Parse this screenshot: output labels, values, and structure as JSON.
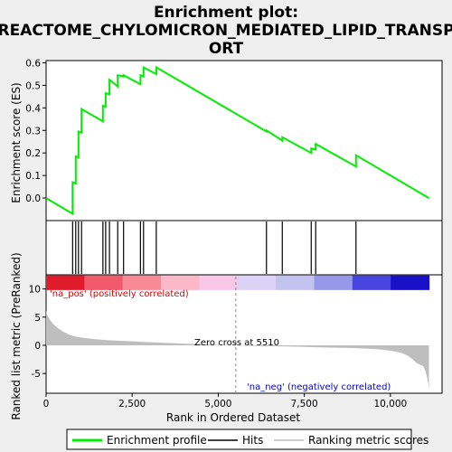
{
  "title_lines": [
    "Enrichment plot:",
    "REACTOME_CHYLOMICRON_MEDIATED_LIPID_TRANSP",
    "ORT"
  ],
  "colors": {
    "background": "#efefef",
    "profile": "#00ee00",
    "hits": "#000000",
    "metric_fill": "#bebebe",
    "pos_label": "#dd0000",
    "neg_label": "#0000cc"
  },
  "chart_data": [
    {
      "type": "line",
      "name": "enrichment-profile",
      "ylabel": "Enrichment score (ES)",
      "xlim": [
        0,
        11500
      ],
      "ylim": [
        -0.1,
        0.61
      ],
      "yticks": [
        0.0,
        0.1,
        0.2,
        0.3,
        0.4,
        0.5,
        0.6
      ],
      "ytick_labels": [
        "0.0",
        "0.1",
        "0.2",
        "0.3",
        "0.4",
        "0.5",
        "0.6"
      ],
      "grid": false,
      "x": [
        0,
        770,
        770,
        860,
        860,
        940,
        940,
        1030,
        1030,
        1650,
        1650,
        1730,
        1730,
        1840,
        1840,
        2080,
        2080,
        2250,
        2250,
        2740,
        2740,
        2830,
        2830,
        3200,
        3200,
        6400,
        6400,
        6860,
        6860,
        7700,
        7700,
        7830,
        7830,
        9000,
        9000,
        11120
      ],
      "y": [
        0.0,
        -0.07,
        0.07,
        0.065,
        0.185,
        0.18,
        0.295,
        0.29,
        0.395,
        0.34,
        0.41,
        0.405,
        0.465,
        0.46,
        0.525,
        0.495,
        0.545,
        0.54,
        0.545,
        0.505,
        0.545,
        0.54,
        0.58,
        0.55,
        0.58,
        0.295,
        0.3,
        0.255,
        0.27,
        0.2,
        0.22,
        0.215,
        0.24,
        0.14,
        0.19,
        0.0
      ]
    },
    {
      "type": "line",
      "name": "hits",
      "hit_positions": [
        770,
        860,
        940,
        1030,
        1650,
        1730,
        1840,
        2080,
        2250,
        2740,
        2830,
        3200,
        6400,
        6860,
        7700,
        7830,
        9000
      ]
    },
    {
      "type": "area",
      "name": "ranking-metric",
      "xlabel": "Rank in Ordered Dataset",
      "ylabel": "Ranked list metric (PreRanked)",
      "xlim": [
        0,
        11500
      ],
      "ylim": [
        -8.5,
        12.5
      ],
      "xticks": [
        0,
        2500,
        5000,
        7500,
        10000
      ],
      "xtick_labels": [
        "0",
        "2,500",
        "5,000",
        "7,500",
        "10,000"
      ],
      "yticks": [
        -5,
        0,
        5,
        10
      ],
      "ytick_labels": [
        "-5",
        "0",
        "5",
        "10"
      ],
      "x": [
        0,
        30,
        100,
        200,
        350,
        500,
        700,
        900,
        1100,
        1400,
        1800,
        2300,
        3000,
        4000,
        5000,
        5510,
        6000,
        7000,
        8000,
        9000,
        9600,
        10000,
        10300,
        10500,
        10650,
        10750,
        10850,
        10950,
        11020,
        11070,
        11100,
        11120
      ],
      "y": [
        6.2,
        5.4,
        4.6,
        3.8,
        3.0,
        2.4,
        1.8,
        1.5,
        1.3,
        1.1,
        0.9,
        0.75,
        0.55,
        0.3,
        0.1,
        0.0,
        -0.1,
        -0.2,
        -0.35,
        -0.5,
        -0.7,
        -0.95,
        -1.3,
        -1.8,
        -2.5,
        -3.1,
        -3.4,
        -3.7,
        -4.6,
        -5.8,
        -6.8,
        -7.8
      ],
      "zero_cross": 5510,
      "zero_cross_label": "Zero cross at 5510",
      "pos_label": "'na_pos' (positively correlated)",
      "neg_label": "'na_neg' (negatively correlated)",
      "color_bar": [
        "#e11c2a",
        "#f05a6c",
        "#f88a96",
        "#fbb8c8",
        "#f9c8e8",
        "#dcd2f6",
        "#c3c3f0",
        "#9898ea",
        "#4646de",
        "#1a10c8"
      ]
    }
  ],
  "legend": {
    "position": "bottom",
    "items": [
      {
        "label": "Enrichment profile",
        "kind": "profile"
      },
      {
        "label": "Hits",
        "kind": "hits"
      },
      {
        "label": "Ranking metric scores",
        "kind": "metric"
      }
    ]
  }
}
